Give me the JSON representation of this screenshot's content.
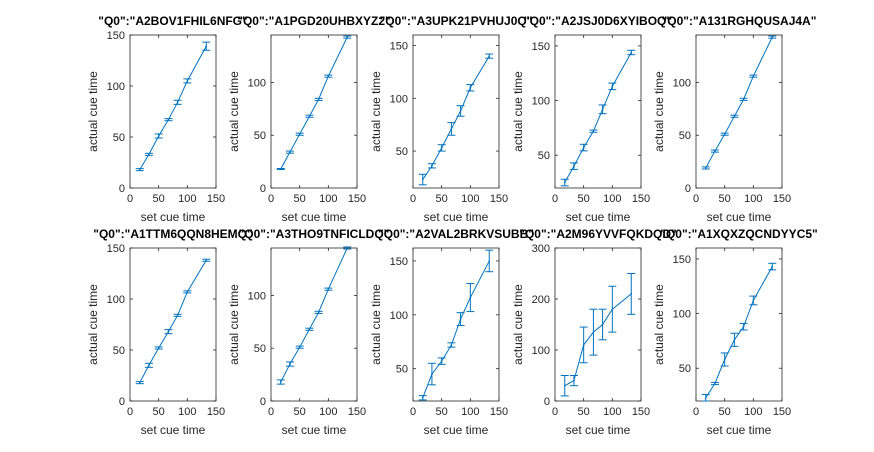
{
  "figure": {
    "colors": {
      "series": "#0072bd",
      "axis": "#262626"
    }
  },
  "chart_data": [
    {
      "type": "line",
      "title": "\"Q0\":\"A2BOV1FHIL6NFG\"",
      "xlabel": "set cue time",
      "ylabel": "actual cue time",
      "xlim": [
        0,
        150
      ],
      "ylim": [
        0,
        150
      ],
      "xticks": [
        0,
        50,
        100,
        150
      ],
      "yticks": [
        0,
        50,
        100,
        150
      ],
      "xtick_labels": [
        "0",
        "50",
        "100",
        "150"
      ],
      "ytick_labels": [
        "0",
        "50",
        "100",
        "150"
      ],
      "series": [
        {
          "x": [
            17,
            33,
            50,
            67,
            83,
            100,
            133
          ],
          "y": [
            18,
            33,
            51,
            67,
            84,
            105,
            139
          ],
          "err": [
            1,
            1,
            2,
            1,
            2,
            2,
            4
          ]
        }
      ]
    },
    {
      "type": "line",
      "title": "\"Q0\":\"A1PGD20UHBXYZ2\"",
      "xlabel": "set cue time",
      "ylabel": "actual cue time",
      "xlim": [
        0,
        150
      ],
      "ylim": [
        0,
        145
      ],
      "xticks": [
        0,
        50,
        100,
        150
      ],
      "yticks": [
        0,
        50,
        100
      ],
      "xtick_labels": [
        "0",
        "50",
        "100",
        "150"
      ],
      "ytick_labels": [
        "0",
        "50",
        "100"
      ],
      "series": [
        {
          "x": [
            17,
            33,
            50,
            67,
            83,
            100,
            133
          ],
          "y": [
            18,
            34,
            51,
            68,
            84,
            106,
            143
          ],
          "err": [
            0.5,
            1,
            1,
            1,
            1,
            1,
            1
          ]
        }
      ]
    },
    {
      "type": "line",
      "title": "\"Q0\":\"A3UPK21PVHUJ0Q\"",
      "xlabel": "set cue time",
      "ylabel": "actual cue time",
      "xlim": [
        0,
        150
      ],
      "ylim": [
        15,
        160
      ],
      "xticks": [
        0,
        50,
        100,
        150
      ],
      "yticks": [
        50,
        100,
        150
      ],
      "xtick_labels": [
        "0",
        "50",
        "100",
        "150"
      ],
      "ytick_labels": [
        "50",
        "100",
        "150"
      ],
      "series": [
        {
          "x": [
            17,
            33,
            50,
            67,
            83,
            100,
            133
          ],
          "y": [
            23,
            36,
            53,
            71,
            88,
            110,
            140
          ],
          "err": [
            5,
            2,
            3,
            6,
            5,
            3,
            2
          ]
        }
      ]
    },
    {
      "type": "line",
      "title": "\"Q0\":\"A2JSJ0D6XYIBOQ\"",
      "xlabel": "set cue time",
      "ylabel": "actual cue time",
      "xlim": [
        0,
        150
      ],
      "ylim": [
        20,
        160
      ],
      "xticks": [
        0,
        50,
        100,
        150
      ],
      "yticks": [
        50,
        100,
        150
      ],
      "xtick_labels": [
        "0",
        "50",
        "100",
        "150"
      ],
      "ytick_labels": [
        "50",
        "100",
        "150"
      ],
      "series": [
        {
          "x": [
            17,
            33,
            50,
            67,
            83,
            100,
            133
          ],
          "y": [
            25,
            40,
            57,
            72,
            92,
            113,
            144
          ],
          "err": [
            3,
            3,
            3,
            1,
            4,
            3,
            2
          ]
        }
      ]
    },
    {
      "type": "line",
      "title": "\"Q0\":\"A131RGHQUSAJ4A\"",
      "xlabel": "set cue time",
      "ylabel": "actual cue time",
      "xlim": [
        0,
        150
      ],
      "ylim": [
        0,
        145
      ],
      "xticks": [
        0,
        50,
        100,
        150
      ],
      "yticks": [
        0,
        50,
        100
      ],
      "xtick_labels": [
        "0",
        "50",
        "100",
        "150"
      ],
      "ytick_labels": [
        "0",
        "50",
        "100"
      ],
      "series": [
        {
          "x": [
            17,
            33,
            50,
            67,
            83,
            100,
            133
          ],
          "y": [
            19,
            35,
            51,
            68,
            84,
            106,
            143
          ],
          "err": [
            1,
            1,
            1,
            1,
            1,
            1,
            1
          ]
        }
      ]
    },
    {
      "type": "line",
      "title": "\"Q0\":\"A1TTM6QQN8HEMQ\"",
      "xlabel": "set cue time",
      "ylabel": "actual cue time",
      "xlim": [
        0,
        150
      ],
      "ylim": [
        0,
        150
      ],
      "xticks": [
        0,
        50,
        100,
        150
      ],
      "yticks": [
        0,
        50,
        100,
        150
      ],
      "xtick_labels": [
        "0",
        "50",
        "100",
        "150"
      ],
      "ytick_labels": [
        "0",
        "50",
        "100",
        "150"
      ],
      "series": [
        {
          "x": [
            17,
            33,
            50,
            67,
            83,
            100,
            133
          ],
          "y": [
            18,
            35,
            52,
            68,
            84,
            107,
            138
          ],
          "err": [
            1,
            2,
            1,
            2,
            1,
            1,
            1
          ]
        }
      ]
    },
    {
      "type": "line",
      "title": "\"Q0\":\"A3THO9TNFICLDQ\"",
      "xlabel": "set cue time",
      "ylabel": "actual cue time",
      "xlim": [
        0,
        150
      ],
      "ylim": [
        0,
        145
      ],
      "xticks": [
        0,
        50,
        100,
        150
      ],
      "yticks": [
        0,
        50,
        100
      ],
      "xtick_labels": [
        "0",
        "50",
        "100",
        "150"
      ],
      "ytick_labels": [
        "0",
        "50",
        "100"
      ],
      "series": [
        {
          "x": [
            17,
            33,
            50,
            67,
            83,
            100,
            133
          ],
          "y": [
            18,
            35,
            51,
            68,
            84,
            106,
            145
          ],
          "err": [
            2,
            2,
            1,
            1,
            1,
            1,
            1
          ]
        }
      ]
    },
    {
      "type": "line",
      "title": "\"Q0\":\"A2VAL2BRKVSUBB\"",
      "xlabel": "set cue time",
      "ylabel": "actual cue time",
      "xlim": [
        0,
        150
      ],
      "ylim": [
        20,
        162
      ],
      "xticks": [
        0,
        50,
        100,
        150
      ],
      "yticks": [
        50,
        100,
        150
      ],
      "xtick_labels": [
        "0",
        "50",
        "100",
        "150"
      ],
      "ytick_labels": [
        "50",
        "100",
        "150"
      ],
      "series": [
        {
          "x": [
            17,
            33,
            50,
            67,
            83,
            100,
            133
          ],
          "y": [
            23,
            45,
            57,
            72,
            96,
            116,
            150
          ],
          "err": [
            2,
            10,
            3,
            2,
            6,
            13,
            10
          ]
        }
      ]
    },
    {
      "type": "line",
      "title": "\"Q0\":\"A2M96YVVFQKDQD\"",
      "xlabel": "set cue time",
      "ylabel": "actual cue time",
      "xlim": [
        0,
        150
      ],
      "ylim": [
        0,
        300
      ],
      "xticks": [
        0,
        50,
        100,
        150
      ],
      "yticks": [
        0,
        100,
        200,
        300
      ],
      "xtick_labels": [
        "0",
        "50",
        "100",
        "150"
      ],
      "ytick_labels": [
        "0",
        "100",
        "200",
        "300"
      ],
      "series": [
        {
          "x": [
            17,
            33,
            50,
            67,
            83,
            100,
            133
          ],
          "y": [
            30,
            40,
            110,
            135,
            150,
            180,
            210
          ],
          "err": [
            20,
            10,
            35,
            45,
            30,
            45,
            40
          ]
        }
      ]
    },
    {
      "type": "line",
      "title": "\"Q0\":\"A1XQXZQCNDYYC5\"",
      "xlabel": "set cue time",
      "ylabel": "actual cue time",
      "xlim": [
        0,
        150
      ],
      "ylim": [
        20,
        160
      ],
      "xticks": [
        0,
        50,
        100,
        150
      ],
      "yticks": [
        50,
        100,
        150
      ],
      "xtick_labels": [
        "0",
        "50",
        "100",
        "150"
      ],
      "ytick_labels": [
        "50",
        "100",
        "150"
      ],
      "series": [
        {
          "x": [
            17,
            33,
            50,
            67,
            83,
            100,
            133
          ],
          "y": [
            23,
            36,
            58,
            76,
            88,
            112,
            143
          ],
          "err": [
            3,
            1,
            6,
            6,
            3,
            4,
            3
          ]
        }
      ]
    }
  ]
}
